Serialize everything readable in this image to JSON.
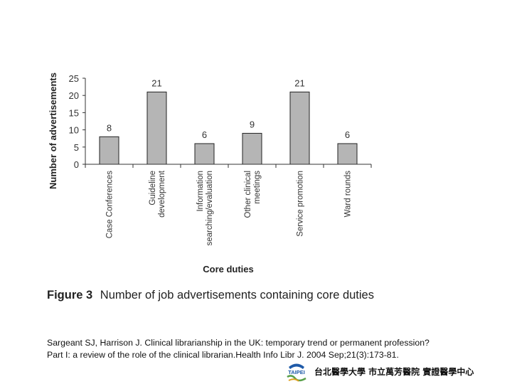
{
  "chart_data": {
    "type": "bar",
    "title": "",
    "xlabel": "Core duties",
    "ylabel": "Number of advertisements",
    "ylim": [
      0,
      25
    ],
    "yticks": [
      0,
      5,
      10,
      15,
      20,
      25
    ],
    "categories": [
      [
        "Case Conferences"
      ],
      [
        "Guideline",
        "development"
      ],
      [
        "Information",
        "searching/evaluation"
      ],
      [
        "Other clinical",
        "meetings"
      ],
      [
        "Service promotion"
      ],
      [
        "Ward rounds"
      ]
    ],
    "values": [
      8,
      21,
      6,
      9,
      21,
      6
    ],
    "data_labels": [
      "8",
      "21",
      "6",
      "9",
      "21",
      "6"
    ],
    "bar_color": "#b5b5b5",
    "bar_edge_color": "#222222",
    "grid": false,
    "legend": "none"
  },
  "figure": {
    "number": "Figure 3",
    "caption": "Number of job advertisements containing core duties"
  },
  "citation": {
    "line1": "Sargeant SJ, Harrison J. Clinical librarianship in the UK: temporary trend or permanent profession?",
    "line2": "Part I: a review of the role of the clinical librarian.Health Info Libr J. 2004 Sep;21(3):173-81."
  },
  "footer": {
    "logo_icon": "taipei-city-logo-icon",
    "logo_text": "TAIPEI",
    "institutions": "台北醫學大學 市立萬芳醫院 實證醫學中心"
  }
}
